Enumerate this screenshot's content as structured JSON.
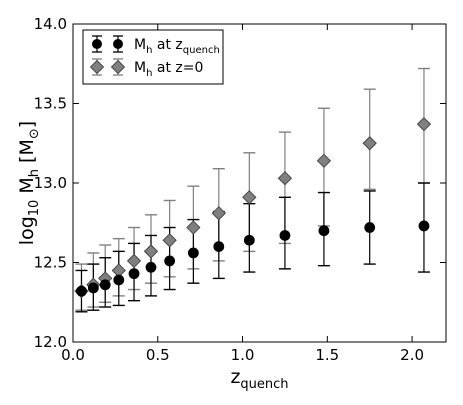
{
  "chart_data": {
    "type": "scatter",
    "title": "",
    "xlabel": {
      "main": "z",
      "sub": "quench"
    },
    "ylabel": {
      "prefix": "log",
      "prefix_sub": "10",
      "main": " M",
      "main_sub": "h",
      "bracket_open": " [M",
      "bracket_sub": "⊙",
      "bracket_close": "]"
    },
    "xlim": [
      0.0,
      2.2
    ],
    "ylim": [
      12.0,
      14.0
    ],
    "x_ticks": [
      0.0,
      0.5,
      1.0,
      1.5,
      2.0
    ],
    "x_tick_labels": [
      "0.0",
      "0.5",
      "1.0",
      "1.5",
      "2.0"
    ],
    "y_ticks": [
      12.0,
      12.5,
      13.0,
      13.5,
      14.0
    ],
    "y_tick_labels": [
      "12.0",
      "12.5",
      "13.0",
      "13.5",
      "14.0"
    ],
    "grid": false,
    "legend_position": "top-left",
    "series": [
      {
        "name": {
          "main": "M",
          "sub_main": "h",
          "rest": " at z",
          "sub_rest": "quench"
        },
        "marker": "circle",
        "color": "#000000",
        "x": [
          0.05,
          0.12,
          0.19,
          0.27,
          0.36,
          0.46,
          0.57,
          0.71,
          0.86,
          1.04,
          1.25,
          1.48,
          1.75,
          2.07
        ],
        "y": [
          12.32,
          12.34,
          12.36,
          12.39,
          12.43,
          12.47,
          12.51,
          12.56,
          12.6,
          12.64,
          12.67,
          12.7,
          12.72,
          12.73
        ],
        "y_low": [
          12.19,
          12.2,
          12.22,
          12.23,
          12.26,
          12.29,
          12.33,
          12.37,
          12.4,
          12.44,
          12.46,
          12.48,
          12.49,
          12.44
        ],
        "y_high": [
          12.45,
          12.49,
          12.53,
          12.57,
          12.62,
          12.67,
          12.72,
          12.77,
          12.82,
          12.87,
          12.91,
          12.94,
          12.95,
          13.0
        ]
      },
      {
        "name": {
          "main": "M",
          "sub_main": "h",
          "rest": " at z=0",
          "sub_rest": ""
        },
        "marker": "diamond",
        "color": "#808080",
        "x": [
          0.05,
          0.12,
          0.19,
          0.27,
          0.36,
          0.46,
          0.57,
          0.71,
          0.86,
          1.04,
          1.25,
          1.48,
          1.75,
          2.07
        ],
        "y": [
          12.32,
          12.36,
          12.4,
          12.45,
          12.51,
          12.57,
          12.64,
          12.72,
          12.81,
          12.91,
          13.03,
          13.14,
          13.25,
          13.37
        ],
        "y_low": [
          12.2,
          12.22,
          12.25,
          12.29,
          12.33,
          12.37,
          12.41,
          12.46,
          12.51,
          12.57,
          12.62,
          12.73,
          12.96,
          13.0
        ],
        "y_high": [
          12.49,
          12.56,
          12.61,
          12.65,
          12.72,
          12.8,
          12.89,
          12.98,
          13.09,
          13.19,
          13.32,
          13.47,
          13.59,
          13.72
        ]
      }
    ]
  }
}
